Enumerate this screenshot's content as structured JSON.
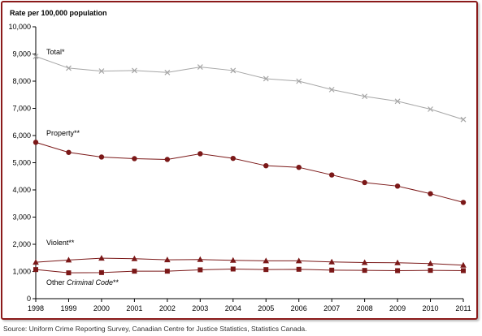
{
  "source": "Source:  Uniform Crime Reporting Survey, Canadian Centre for Justice Statistics, Statistics Canada.",
  "chart_data": {
    "type": "line",
    "ylabel": "Rate per 100,000 population",
    "ylim": [
      0,
      10000
    ],
    "y_ticks": [
      "0",
      "1,000",
      "2,000",
      "3,000",
      "4,000",
      "5,000",
      "6,000",
      "7,000",
      "8,000",
      "9,000",
      "10,000"
    ],
    "x": [
      "1998",
      "1999",
      "2000",
      "2001",
      "2002",
      "2003",
      "2004",
      "2005",
      "2006",
      "2007",
      "2008",
      "2009",
      "2010",
      "2011"
    ],
    "grid": false,
    "series": [
      {
        "name": "Total*",
        "marker": "x",
        "color": "#a6a6a6",
        "values": [
          8910,
          8480,
          8370,
          8390,
          8320,
          8520,
          8390,
          8090,
          8000,
          7690,
          7440,
          7260,
          6970,
          6590
        ]
      },
      {
        "name": "Property**",
        "marker": "circle",
        "color": "#7b1818",
        "values": [
          5750,
          5380,
          5210,
          5150,
          5120,
          5330,
          5160,
          4890,
          4830,
          4550,
          4270,
          4140,
          3860,
          3540
        ]
      },
      {
        "name": "Violent**",
        "marker": "triangle",
        "color": "#7b1818",
        "values": [
          1340,
          1420,
          1490,
          1470,
          1430,
          1440,
          1410,
          1390,
          1390,
          1350,
          1330,
          1320,
          1290,
          1230
        ]
      },
      {
        "name": "Other Criminal Code**",
        "name_prefix": "Other ",
        "name_italic": "Criminal Code",
        "name_suffix": "**",
        "marker": "square",
        "color": "#7b1818",
        "values": [
          1070,
          950,
          960,
          1010,
          1010,
          1060,
          1090,
          1070,
          1080,
          1050,
          1040,
          1030,
          1040,
          1030
        ]
      }
    ]
  }
}
